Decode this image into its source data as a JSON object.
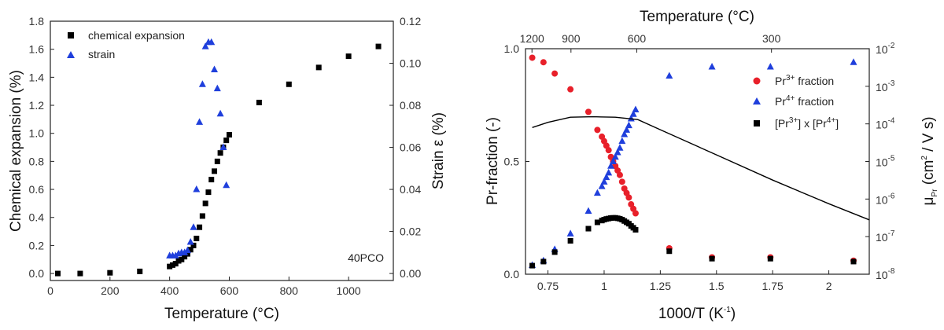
{
  "chart_data": [
    {
      "type": "scatter",
      "xlabel": "Temperature (°C)",
      "ylabel": "Chemical expansion (%)",
      "y2label": "Strain ε (%)",
      "annotation": "40PCO",
      "xlim": [
        0,
        1150
      ],
      "ylim": [
        -0.05,
        1.8
      ],
      "y2lim": [
        -0.00333,
        0.12
      ],
      "x_ticks": [
        0,
        200,
        400,
        600,
        800,
        1000
      ],
      "y_ticks": [
        0.0,
        0.2,
        0.4,
        0.6,
        0.8,
        1.0,
        1.2,
        1.4,
        1.6,
        1.8
      ],
      "y2_ticks": [
        0.0,
        0.02,
        0.04,
        0.06,
        0.08,
        0.1,
        0.12
      ],
      "legend_position": "top-left",
      "colors": {
        "chemical_expansion": "#000000",
        "strain": "#1f3fdc"
      },
      "series": [
        {
          "name": "chemical expansion",
          "axis": "left",
          "marker": "square",
          "points": [
            [
              25,
              0.0
            ],
            [
              100,
              0.0
            ],
            [
              200,
              0.005
            ],
            [
              300,
              0.015
            ],
            [
              400,
              0.05
            ],
            [
              410,
              0.06
            ],
            [
              420,
              0.07
            ],
            [
              430,
              0.09
            ],
            [
              440,
              0.1
            ],
            [
              450,
              0.12
            ],
            [
              460,
              0.14
            ],
            [
              470,
              0.17
            ],
            [
              480,
              0.2
            ],
            [
              490,
              0.25
            ],
            [
              500,
              0.33
            ],
            [
              510,
              0.41
            ],
            [
              520,
              0.5
            ],
            [
              530,
              0.58
            ],
            [
              540,
              0.67
            ],
            [
              550,
              0.73
            ],
            [
              560,
              0.8
            ],
            [
              570,
              0.86
            ],
            [
              580,
              0.9
            ],
            [
              590,
              0.95
            ],
            [
              600,
              0.99
            ],
            [
              700,
              1.22
            ],
            [
              800,
              1.35
            ],
            [
              900,
              1.47
            ],
            [
              1000,
              1.55
            ],
            [
              1100,
              1.62
            ]
          ]
        },
        {
          "name": "strain",
          "axis": "right",
          "marker": "triangle",
          "points": [
            [
              400,
              0.0085
            ],
            [
              410,
              0.0085
            ],
            [
              420,
              0.0085
            ],
            [
              430,
              0.0095
            ],
            [
              440,
              0.01
            ],
            [
              450,
              0.01
            ],
            [
              460,
              0.011
            ],
            [
              470,
              0.015
            ],
            [
              480,
              0.022
            ],
            [
              490,
              0.04
            ],
            [
              500,
              0.072
            ],
            [
              510,
              0.09
            ],
            [
              520,
              0.108
            ],
            [
              530,
              0.11
            ],
            [
              540,
              0.11
            ],
            [
              550,
              0.097
            ],
            [
              560,
              0.088
            ],
            [
              570,
              0.076
            ],
            [
              580,
              0.06
            ],
            [
              590,
              0.042
            ]
          ]
        }
      ]
    },
    {
      "type": "scatter",
      "xlabel": "1000/T (K",
      "xlabel_sup": "-1",
      "xlabel_tail": ")",
      "top_xlabel": "Temperature (°C)",
      "ylabel": "Pr-fraction (-)",
      "y2label_base": "μ",
      "y2label_sub": "Pr",
      "y2label_rest": " (cm",
      "y2label_sup": "2",
      "y2label_tail": " / V s)",
      "xlim": [
        0.65,
        2.18
      ],
      "ylim": [
        0.0,
        1.0
      ],
      "y2_scale": "log",
      "y2lim": [
        1e-08,
        0.01
      ],
      "x_ticks": [
        {
          "v": 0.75,
          "label": "0.75"
        },
        {
          "v": 1.0,
          "label": "1"
        },
        {
          "v": 1.25,
          "label": "1.25"
        },
        {
          "v": 1.5,
          "label": "1.5"
        },
        {
          "v": 1.75,
          "label": "1.75"
        },
        {
          "v": 2.0,
          "label": "2"
        }
      ],
      "y_ticks": [
        {
          "v": 0.0,
          "label": "0.0"
        },
        {
          "v": 0.5,
          "label": "0.5"
        },
        {
          "v": 1.0,
          "label": "1.0"
        }
      ],
      "y2_ticks": [
        {
          "exp": -8
        },
        {
          "exp": -7
        },
        {
          "exp": -6
        },
        {
          "exp": -5
        },
        {
          "exp": -4
        },
        {
          "exp": -3
        },
        {
          "exp": -2
        }
      ],
      "top_ticks": [
        {
          "label": "1200",
          "t": 1200
        },
        {
          "label": "900",
          "t": 900
        },
        {
          "label": "600",
          "t": 600
        },
        {
          "label": "300",
          "t": 300
        }
      ],
      "legend_position": "top-right",
      "colors": {
        "pr3": "#e8202a",
        "pr4": "#1f3fdc",
        "product": "#000000",
        "line": "#000000"
      },
      "legend": [
        {
          "base": "Pr",
          "sup": "3+",
          "tail": " fraction",
          "key": "pr3"
        },
        {
          "base": "Pr",
          "sup": "4+",
          "tail": " fraction",
          "key": "pr4"
        },
        {
          "base": "[Pr",
          "sup": "3+",
          "tail": "] x [Pr",
          "sup2": "4+",
          "tail2": "]",
          "key": "product"
        }
      ],
      "series": [
        {
          "name": "Pr3+ fraction",
          "marker": "circle",
          "key": "pr3",
          "points": [
            [
              0.68,
              0.96
            ],
            [
              0.73,
              0.94
            ],
            [
              0.78,
              0.89
            ],
            [
              0.85,
              0.82
            ],
            [
              0.93,
              0.72
            ],
            [
              0.97,
              0.64
            ],
            [
              0.99,
              0.61
            ],
            [
              1.0,
              0.59
            ],
            [
              1.01,
              0.57
            ],
            [
              1.02,
              0.55
            ],
            [
              1.03,
              0.52
            ],
            [
              1.04,
              0.5
            ],
            [
              1.05,
              0.48
            ],
            [
              1.06,
              0.46
            ],
            [
              1.07,
              0.44
            ],
            [
              1.08,
              0.41
            ],
            [
              1.09,
              0.38
            ],
            [
              1.1,
              0.36
            ],
            [
              1.11,
              0.34
            ],
            [
              1.12,
              0.31
            ],
            [
              1.13,
              0.29
            ],
            [
              1.14,
              0.27
            ],
            [
              1.29,
              0.115
            ],
            [
              1.48,
              0.075
            ],
            [
              1.74,
              0.075
            ],
            [
              2.11,
              0.06
            ]
          ]
        },
        {
          "name": "Pr4+ fraction",
          "marker": "triangle",
          "key": "pr4",
          "points": [
            [
              0.68,
              0.04
            ],
            [
              0.73,
              0.06
            ],
            [
              0.78,
              0.11
            ],
            [
              0.85,
              0.18
            ],
            [
              0.93,
              0.28
            ],
            [
              0.97,
              0.36
            ],
            [
              0.99,
              0.39
            ],
            [
              1.0,
              0.41
            ],
            [
              1.01,
              0.43
            ],
            [
              1.02,
              0.45
            ],
            [
              1.03,
              0.48
            ],
            [
              1.04,
              0.5
            ],
            [
              1.05,
              0.52
            ],
            [
              1.06,
              0.54
            ],
            [
              1.07,
              0.56
            ],
            [
              1.08,
              0.59
            ],
            [
              1.09,
              0.62
            ],
            [
              1.1,
              0.64
            ],
            [
              1.11,
              0.66
            ],
            [
              1.12,
              0.69
            ],
            [
              1.13,
              0.71
            ],
            [
              1.14,
              0.73
            ],
            [
              1.29,
              0.88
            ],
            [
              1.48,
              0.92
            ],
            [
              1.74,
              0.92
            ],
            [
              2.11,
              0.94
            ]
          ]
        },
        {
          "name": "[Pr3+] x [Pr4+]",
          "marker": "square",
          "key": "product",
          "points": [
            [
              0.68,
              0.038
            ],
            [
              0.73,
              0.056
            ],
            [
              0.78,
              0.098
            ],
            [
              0.85,
              0.148
            ],
            [
              0.93,
              0.202
            ],
            [
              0.97,
              0.23
            ],
            [
              0.99,
              0.238
            ],
            [
              1.0,
              0.242
            ],
            [
              1.01,
              0.245
            ],
            [
              1.02,
              0.247
            ],
            [
              1.03,
              0.249
            ],
            [
              1.04,
              0.25
            ],
            [
              1.05,
              0.25
            ],
            [
              1.06,
              0.248
            ],
            [
              1.07,
              0.246
            ],
            [
              1.08,
              0.242
            ],
            [
              1.09,
              0.236
            ],
            [
              1.1,
              0.23
            ],
            [
              1.11,
              0.224
            ],
            [
              1.12,
              0.214
            ],
            [
              1.13,
              0.206
            ],
            [
              1.14,
              0.197
            ],
            [
              1.29,
              0.102
            ],
            [
              1.48,
              0.069
            ],
            [
              1.74,
              0.069
            ],
            [
              2.11,
              0.056
            ]
          ]
        },
        {
          "name": "mobility",
          "type": "line",
          "axis": "right",
          "key": "line",
          "points": [
            [
              0.68,
              8e-05
            ],
            [
              0.75,
              0.00011
            ],
            [
              0.85,
              0.00015
            ],
            [
              0.95,
              0.000155
            ],
            [
              1.05,
              0.00015
            ],
            [
              1.15,
              0.00013
            ],
            [
              1.25,
              7e-05
            ],
            [
              1.5,
              1.5e-05
            ],
            [
              1.75,
              3.2e-06
            ],
            [
              2.0,
              7.5e-07
            ],
            [
              2.18,
              2.8e-07
            ]
          ]
        }
      ]
    }
  ]
}
